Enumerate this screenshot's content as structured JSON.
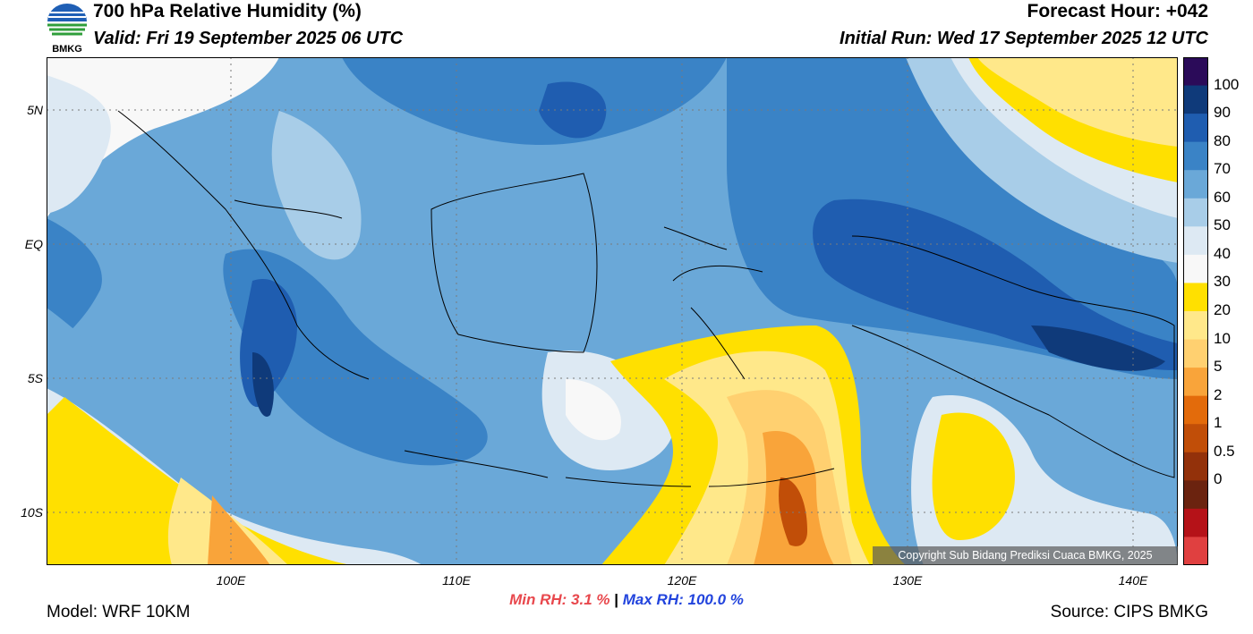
{
  "header": {
    "title": "700 hPa Relative Humidity (%)",
    "valid": "Valid: Fri 19 September 2025 06 UTC",
    "forecast_hour": "Forecast Hour: +042",
    "initial_run": "Initial Run: Wed 17 September 2025 12 UTC"
  },
  "logo": {
    "text": "BMKG",
    "colors": [
      "#1f5fb5",
      "#2f9e3a"
    ]
  },
  "axes": {
    "lat_labels": [
      "5N",
      "EQ",
      "5S",
      "10S"
    ],
    "lon_labels": [
      "100E",
      "110E",
      "120E",
      "130E",
      "140E"
    ]
  },
  "colorbar": {
    "labels": [
      "100",
      "90",
      "80",
      "70",
      "60",
      "50",
      "40",
      "30",
      "20",
      "10",
      "5",
      "2",
      "1",
      "0.5",
      "0"
    ],
    "colors": [
      "#2b0b59",
      "#0f3a7a",
      "#1f5db0",
      "#3a83c6",
      "#6aa8d8",
      "#a8cde8",
      "#dde9f3",
      "#f8f8f8",
      "#ffe000",
      "#ffe88a",
      "#ffd070",
      "#f9a43a",
      "#e36b0b",
      "#c14e08",
      "#93310a",
      "#6b230f",
      "#b51218",
      "#e04040"
    ]
  },
  "stats": {
    "min_label": "Min RH:",
    "min_value": "3.1 %",
    "sep": "|",
    "max_label": "Max RH: 100.0 %"
  },
  "footer": {
    "model": "Model: WRF 10KM",
    "source": "Source: CIPS BMKG",
    "copyright": "Copyright Sub Bidang Prediksi Cuaca BMKG, 2025"
  }
}
